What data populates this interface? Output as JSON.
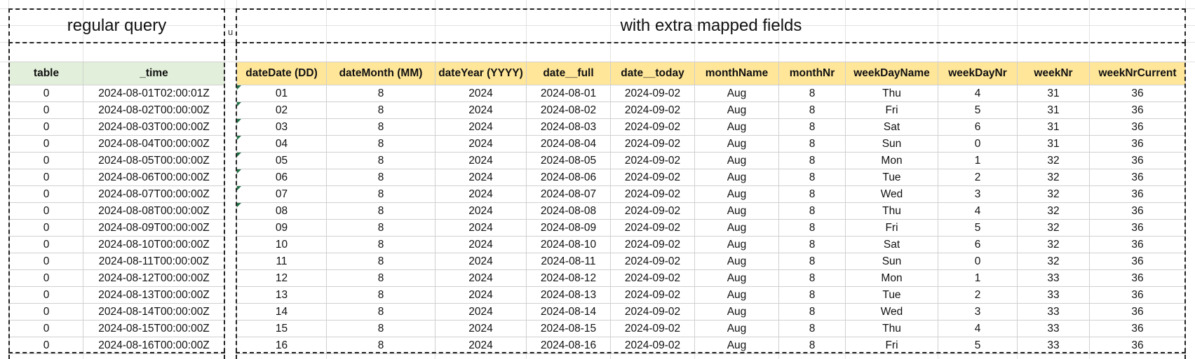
{
  "titles": {
    "left": "regular query",
    "right": "with extra mapped fields",
    "gap_marker": "u"
  },
  "left_table": {
    "headers": [
      "table",
      "_time"
    ],
    "rows": [
      [
        "0",
        "2024-08-01T02:00:01Z"
      ],
      [
        "0",
        "2024-08-02T00:00:00Z"
      ],
      [
        "0",
        "2024-08-03T00:00:00Z"
      ],
      [
        "0",
        "2024-08-04T00:00:00Z"
      ],
      [
        "0",
        "2024-08-05T00:00:00Z"
      ],
      [
        "0",
        "2024-08-06T00:00:00Z"
      ],
      [
        "0",
        "2024-08-07T00:00:00Z"
      ],
      [
        "0",
        "2024-08-08T00:00:00Z"
      ],
      [
        "0",
        "2024-08-09T00:00:00Z"
      ],
      [
        "0",
        "2024-08-10T00:00:00Z"
      ],
      [
        "0",
        "2024-08-11T00:00:00Z"
      ],
      [
        "0",
        "2024-08-12T00:00:00Z"
      ],
      [
        "0",
        "2024-08-13T00:00:00Z"
      ],
      [
        "0",
        "2024-08-14T00:00:00Z"
      ],
      [
        "0",
        "2024-08-15T00:00:00Z"
      ],
      [
        "0",
        "2024-08-16T00:00:00Z"
      ]
    ]
  },
  "right_table": {
    "headers": [
      "dateDate (DD)",
      "dateMonth (MM)",
      "dateYear (YYYY)",
      "date__full",
      "date__today",
      "monthName",
      "monthNr",
      "weekDayName",
      "weekDayNr",
      "weekNr",
      "weekNrCurrent"
    ],
    "rows": [
      [
        "01",
        "8",
        "2024",
        "2024-08-01",
        "2024-09-02",
        "Aug",
        "8",
        "Thu",
        "4",
        "31",
        "36"
      ],
      [
        "02",
        "8",
        "2024",
        "2024-08-02",
        "2024-09-02",
        "Aug",
        "8",
        "Fri",
        "5",
        "31",
        "36"
      ],
      [
        "03",
        "8",
        "2024",
        "2024-08-03",
        "2024-09-02",
        "Aug",
        "8",
        "Sat",
        "6",
        "31",
        "36"
      ],
      [
        "04",
        "8",
        "2024",
        "2024-08-04",
        "2024-09-02",
        "Aug",
        "8",
        "Sun",
        "0",
        "31",
        "36"
      ],
      [
        "05",
        "8",
        "2024",
        "2024-08-05",
        "2024-09-02",
        "Aug",
        "8",
        "Mon",
        "1",
        "32",
        "36"
      ],
      [
        "06",
        "8",
        "2024",
        "2024-08-06",
        "2024-09-02",
        "Aug",
        "8",
        "Tue",
        "2",
        "32",
        "36"
      ],
      [
        "07",
        "8",
        "2024",
        "2024-08-07",
        "2024-09-02",
        "Aug",
        "8",
        "Wed",
        "3",
        "32",
        "36"
      ],
      [
        "08",
        "8",
        "2024",
        "2024-08-08",
        "2024-09-02",
        "Aug",
        "8",
        "Thu",
        "4",
        "32",
        "36"
      ],
      [
        "09",
        "8",
        "2024",
        "2024-08-09",
        "2024-09-02",
        "Aug",
        "8",
        "Fri",
        "5",
        "32",
        "36"
      ],
      [
        "10",
        "8",
        "2024",
        "2024-08-10",
        "2024-09-02",
        "Aug",
        "8",
        "Sat",
        "6",
        "32",
        "36"
      ],
      [
        "11",
        "8",
        "2024",
        "2024-08-11",
        "2024-09-02",
        "Aug",
        "8",
        "Sun",
        "0",
        "32",
        "36"
      ],
      [
        "12",
        "8",
        "2024",
        "2024-08-12",
        "2024-09-02",
        "Aug",
        "8",
        "Mon",
        "1",
        "33",
        "36"
      ],
      [
        "13",
        "8",
        "2024",
        "2024-08-13",
        "2024-09-02",
        "Aug",
        "8",
        "Tue",
        "2",
        "33",
        "36"
      ],
      [
        "14",
        "8",
        "2024",
        "2024-08-14",
        "2024-09-02",
        "Aug",
        "8",
        "Wed",
        "3",
        "33",
        "36"
      ],
      [
        "15",
        "8",
        "2024",
        "2024-08-15",
        "2024-09-02",
        "Aug",
        "8",
        "Thu",
        "4",
        "33",
        "36"
      ],
      [
        "16",
        "8",
        "2024",
        "2024-08-16",
        "2024-09-02",
        "Aug",
        "8",
        "Fri",
        "5",
        "33",
        "36"
      ]
    ]
  },
  "colors": {
    "left_header_bg": "#e2efda",
    "right_header_bg": "#ffe699",
    "text_marker": "#217346"
  }
}
